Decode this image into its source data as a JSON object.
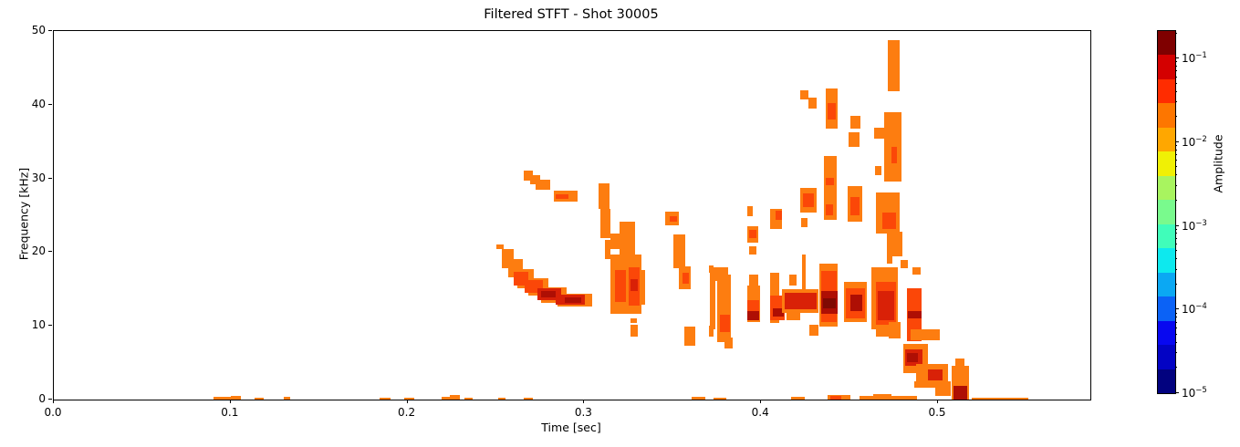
{
  "figure": {
    "title": "Filtered STFT - Shot 30005",
    "xlabel": "Time [sec]",
    "ylabel": "Frequency [kHz]"
  },
  "chart_data": {
    "type": "heatmap",
    "subtype": "spectrogram",
    "title": "Filtered STFT - Shot 30005",
    "xlabel": "Time [sec]",
    "ylabel": "Frequency [kHz]",
    "xlim": [
      0.0,
      0.5862
    ],
    "ylim": [
      0,
      50
    ],
    "x_ticks": [
      0.0,
      0.1,
      0.2,
      0.3,
      0.4,
      0.5
    ],
    "y_ticks": [
      0,
      10,
      20,
      30,
      40,
      50
    ],
    "grid": false,
    "background": "#ffffff",
    "colorbar": {
      "label": "Amplitude",
      "scale": "log",
      "vmin": 1e-05,
      "vmax": 0.213,
      "major_tick_exponents": [
        -1,
        -2,
        -3,
        -4,
        -5
      ],
      "band_colors_top_to_bottom": [
        "#7f0000",
        "#d40000",
        "#ff2c00",
        "#fd7600",
        "#ffa700",
        "#f0f005",
        "#a8f45f",
        "#79fa8d",
        "#40fdba",
        "#0de9ee",
        "#0ba8f3",
        "#0b62f6",
        "#0808f0",
        "#0303c4",
        "#02027f"
      ]
    },
    "level_colors": [
      "#fd7d10",
      "#fb4708",
      "#d92107",
      "#ae0f04",
      "#7f0a03"
    ],
    "level_amplitudes": [
      "~1e-2",
      "~2e-2",
      "~5e-2",
      "~1e-1",
      "~2e-1"
    ],
    "blobs_format": [
      "t_sec",
      "f_khz_bottom",
      "dt_sec",
      "df_khz",
      "level"
    ],
    "blobs": [
      [
        0.2658,
        29.7,
        0.0052,
        1.4,
        1
      ],
      [
        0.2694,
        29.2,
        0.0057,
        1.2,
        1
      ],
      [
        0.2725,
        28.5,
        0.0083,
        1.3,
        1
      ],
      [
        0.2829,
        26.9,
        0.0134,
        1.4,
        1
      ],
      [
        0.2839,
        27.2,
        0.0072,
        0.6,
        2
      ],
      [
        0.2503,
        20.4,
        0.0041,
        0.7,
        1
      ],
      [
        0.2534,
        17.8,
        0.0067,
        2.6,
        1
      ],
      [
        0.257,
        16.6,
        0.0083,
        2.5,
        1
      ],
      [
        0.2622,
        15.1,
        0.0093,
        2.6,
        1
      ],
      [
        0.2684,
        14.1,
        0.0114,
        2.4,
        1
      ],
      [
        0.2756,
        13.1,
        0.0145,
        2.1,
        1
      ],
      [
        0.2849,
        12.6,
        0.0197,
        1.8,
        1
      ],
      [
        0.2601,
        15.5,
        0.0083,
        1.8,
        2
      ],
      [
        0.2663,
        14.5,
        0.0104,
        1.7,
        2
      ],
      [
        0.2736,
        13.5,
        0.0134,
        1.6,
        3
      ],
      [
        0.2756,
        13.9,
        0.0083,
        0.8,
        4
      ],
      [
        0.2839,
        12.9,
        0.0165,
        1.3,
        3
      ],
      [
        0.2891,
        13.1,
        0.0093,
        0.8,
        4
      ],
      [
        0.3082,
        25.9,
        0.0062,
        3.4,
        1
      ],
      [
        0.3092,
        21.9,
        0.0057,
        4.0,
        1
      ],
      [
        0.3118,
        19.1,
        0.0031,
        2.6,
        1
      ],
      [
        0.3149,
        20.4,
        0.0052,
        2.1,
        1
      ],
      [
        0.3201,
        19.7,
        0.0088,
        4.4,
        1
      ],
      [
        0.3149,
        11.6,
        0.0176,
        8.1,
        1
      ],
      [
        0.3175,
        13.2,
        0.0062,
        4.4,
        2
      ],
      [
        0.3252,
        12.7,
        0.0062,
        5.2,
        2
      ],
      [
        0.3263,
        14.7,
        0.0041,
        1.6,
        3
      ],
      [
        0.3263,
        10.4,
        0.0036,
        0.6,
        1
      ],
      [
        0.3263,
        8.5,
        0.0041,
        1.6,
        1
      ],
      [
        0.3004,
        13.0,
        0.0016,
        0.6,
        1
      ],
      [
        0.3314,
        12.9,
        0.0031,
        4.7,
        1
      ],
      [
        0.3459,
        23.6,
        0.0078,
        1.9,
        1
      ],
      [
        0.3485,
        24.1,
        0.0041,
        0.8,
        2
      ],
      [
        0.3506,
        17.8,
        0.0067,
        4.6,
        1
      ],
      [
        0.3537,
        15.0,
        0.0067,
        3.1,
        1
      ],
      [
        0.3557,
        15.7,
        0.0036,
        1.5,
        2
      ],
      [
        0.3568,
        7.3,
        0.0062,
        2.6,
        1
      ],
      [
        0.3707,
        17.2,
        0.0026,
        1.0,
        1
      ],
      [
        0.3707,
        8.5,
        0.0026,
        1.5,
        1
      ],
      [
        0.3712,
        16.1,
        0.0103,
        1.8,
        1
      ],
      [
        0.3712,
        9.5,
        0.0031,
        6.6,
        1
      ],
      [
        0.3753,
        7.8,
        0.0078,
        9.2,
        1
      ],
      [
        0.3769,
        9.2,
        0.0057,
        2.3,
        2
      ],
      [
        0.3795,
        6.9,
        0.0046,
        1.5,
        1
      ],
      [
        0.3919,
        24.9,
        0.0031,
        1.3,
        1
      ],
      [
        0.3924,
        21.3,
        0.0062,
        2.2,
        1
      ],
      [
        0.3934,
        21.9,
        0.0041,
        1.1,
        2
      ],
      [
        0.3934,
        19.7,
        0.0041,
        1.1,
        1
      ],
      [
        0.3934,
        15.5,
        0.0052,
        1.5,
        1
      ],
      [
        0.3919,
        10.5,
        0.0077,
        5.0,
        1
      ],
      [
        0.3924,
        11.8,
        0.0067,
        1.7,
        2
      ],
      [
        0.3919,
        10.8,
        0.0067,
        1.2,
        4
      ],
      [
        0.4053,
        23.1,
        0.0067,
        2.8,
        1
      ],
      [
        0.4079,
        24.4,
        0.0036,
        1.2,
        2
      ],
      [
        0.4053,
        10.4,
        0.0052,
        6.8,
        1
      ],
      [
        0.4048,
        10.8,
        0.0083,
        3.3,
        2
      ],
      [
        0.4064,
        11.3,
        0.0062,
        1.1,
        4
      ],
      [
        0.412,
        11.8,
        0.0207,
        3.2,
        1
      ],
      [
        0.4131,
        12.3,
        0.0181,
        2.2,
        3
      ],
      [
        0.4141,
        10.8,
        0.0078,
        1.2,
        1
      ],
      [
        0.4157,
        15.5,
        0.0046,
        1.5,
        1
      ],
      [
        0.4229,
        14.7,
        0.0021,
        5.0,
        1
      ],
      [
        0.4271,
        8.7,
        0.0051,
        1.4,
        1
      ],
      [
        0.4327,
        9.9,
        0.0104,
        8.5,
        1
      ],
      [
        0.4338,
        10.5,
        0.0088,
        7.0,
        2
      ],
      [
        0.4338,
        11.6,
        0.0093,
        3.1,
        4
      ],
      [
        0.4348,
        12.4,
        0.0073,
        1.3,
        5
      ],
      [
        0.4353,
        24.4,
        0.0073,
        8.6,
        1
      ],
      [
        0.4364,
        29.1,
        0.0046,
        1.0,
        2
      ],
      [
        0.4364,
        25.0,
        0.0041,
        1.5,
        2
      ],
      [
        0.4364,
        36.8,
        0.0067,
        5.4,
        1
      ],
      [
        0.4374,
        38.0,
        0.0047,
        2.2,
        2
      ],
      [
        0.4219,
        40.7,
        0.0047,
        1.3,
        1
      ],
      [
        0.4266,
        39.5,
        0.0046,
        1.5,
        1
      ],
      [
        0.4219,
        25.4,
        0.0093,
        3.3,
        1
      ],
      [
        0.4234,
        26.1,
        0.0062,
        1.9,
        2
      ],
      [
        0.4224,
        23.4,
        0.0041,
        1.2,
        1
      ],
      [
        0.4504,
        36.8,
        0.0057,
        1.7,
        1
      ],
      [
        0.4493,
        34.3,
        0.0062,
        2.0,
        1
      ],
      [
        0.4488,
        24.1,
        0.0083,
        4.9,
        1
      ],
      [
        0.4504,
        25.0,
        0.0052,
        2.5,
        2
      ],
      [
        0.4467,
        10.5,
        0.0129,
        5.5,
        1
      ],
      [
        0.4478,
        11.0,
        0.0109,
        4.1,
        2
      ],
      [
        0.4504,
        12.0,
        0.0067,
        2.2,
        4
      ],
      [
        0.4716,
        41.8,
        0.0067,
        7.0,
        1
      ],
      [
        0.4695,
        29.6,
        0.0098,
        9.4,
        1
      ],
      [
        0.4736,
        32.1,
        0.0031,
        2.2,
        2
      ],
      [
        0.4638,
        35.4,
        0.0062,
        1.5,
        1
      ],
      [
        0.4643,
        30.4,
        0.0037,
        1.3,
        1
      ],
      [
        0.4695,
        26.9,
        0.0057,
        0.9,
        1
      ],
      [
        0.4648,
        22.5,
        0.0135,
        5.6,
        1
      ],
      [
        0.4684,
        23.1,
        0.0078,
        2.3,
        2
      ],
      [
        0.4711,
        19.4,
        0.0087,
        3.4,
        1
      ],
      [
        0.4622,
        9.5,
        0.015,
        8.4,
        1
      ],
      [
        0.4648,
        10.1,
        0.0114,
        5.9,
        2
      ],
      [
        0.4658,
        10.8,
        0.0094,
        3.9,
        3
      ],
      [
        0.4648,
        8.5,
        0.0072,
        1.6,
        1
      ],
      [
        0.472,
        8.3,
        0.0067,
        2.2,
        1
      ],
      [
        0.4711,
        18.4,
        0.0031,
        1.0,
        1
      ],
      [
        0.4788,
        17.8,
        0.0041,
        1.1,
        1
      ],
      [
        0.4855,
        17.0,
        0.0047,
        1.0,
        1
      ],
      [
        0.4824,
        7.9,
        0.0082,
        7.2,
        2
      ],
      [
        0.4829,
        11.0,
        0.0077,
        1.0,
        4
      ],
      [
        0.4803,
        3.6,
        0.014,
        3.9,
        1
      ],
      [
        0.4814,
        4.6,
        0.0098,
        2.2,
        3
      ],
      [
        0.4824,
        5.1,
        0.0062,
        1.2,
        4
      ],
      [
        0.4845,
        8.0,
        0.0165,
        1.5,
        1
      ],
      [
        0.4876,
        1.6,
        0.0181,
        3.2,
        1
      ],
      [
        0.4943,
        2.6,
        0.0083,
        1.5,
        3
      ],
      [
        0.4984,
        0.5,
        0.0088,
        2.0,
        1
      ],
      [
        0.4866,
        1.6,
        0.0051,
        0.9,
        1
      ],
      [
        0.5077,
        0.0,
        0.0098,
        4.6,
        1
      ],
      [
        0.5087,
        0.0,
        0.0078,
        1.9,
        4
      ],
      [
        0.5098,
        4.3,
        0.0051,
        1.3,
        1
      ],
      [
        0.0901,
        0.0,
        0.015,
        0.35,
        1
      ],
      [
        0.0999,
        0.0,
        0.0057,
        0.55,
        1
      ],
      [
        0.1133,
        0.0,
        0.0052,
        0.3,
        1
      ],
      [
        0.1299,
        0.0,
        0.0036,
        0.35,
        1
      ],
      [
        0.1842,
        0.0,
        0.0062,
        0.3,
        1
      ],
      [
        0.1981,
        0.0,
        0.0057,
        0.3,
        1
      ],
      [
        0.2193,
        0.0,
        0.0103,
        0.35,
        1
      ],
      [
        0.224,
        0.0,
        0.0056,
        0.6,
        1
      ],
      [
        0.2322,
        0.0,
        0.0047,
        0.3,
        1
      ],
      [
        0.2513,
        0.0,
        0.0042,
        0.3,
        1
      ],
      [
        0.2658,
        0.0,
        0.0052,
        0.3,
        1
      ],
      [
        0.3609,
        0.0,
        0.0078,
        0.35,
        1
      ],
      [
        0.3728,
        0.0,
        0.0077,
        0.3,
        1
      ],
      [
        0.4167,
        0.0,
        0.0078,
        0.35,
        1
      ],
      [
        0.4374,
        0.0,
        0.013,
        0.6,
        1
      ],
      [
        0.439,
        0.0,
        0.0062,
        0.45,
        2
      ],
      [
        0.4555,
        0.0,
        0.0326,
        0.45,
        1
      ],
      [
        0.4633,
        0.0,
        0.0103,
        0.8,
        1
      ],
      [
        0.5191,
        0.0,
        0.032,
        0.25,
        1
      ]
    ]
  }
}
